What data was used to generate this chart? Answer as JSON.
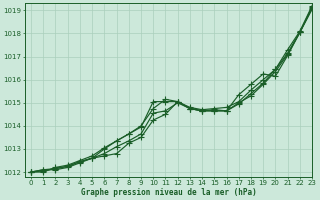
{
  "xlabel": "Graphe pression niveau de la mer (hPa)",
  "xlim": [
    -0.5,
    23
  ],
  "ylim": [
    1011.8,
    1019.3
  ],
  "yticks": [
    1012,
    1013,
    1014,
    1015,
    1016,
    1017,
    1018,
    1019
  ],
  "xticks": [
    0,
    1,
    2,
    3,
    4,
    5,
    6,
    7,
    8,
    9,
    10,
    11,
    12,
    13,
    14,
    15,
    16,
    17,
    18,
    19,
    20,
    21,
    22,
    23
  ],
  "bg_color": "#cce8da",
  "grid_color": "#aacfbc",
  "line_color": "#1a5e28",
  "line1": [
    1012.0,
    1012.1,
    1012.15,
    1012.25,
    1012.45,
    1012.6,
    1012.8,
    1013.1,
    1013.35,
    1013.65,
    1014.55,
    1014.65,
    1015.0,
    1014.75,
    1014.65,
    1014.65,
    1014.65,
    1015.0,
    1015.3,
    1015.8,
    1016.35,
    1017.1,
    1018.05,
    1019.1
  ],
  "line2": [
    1012.0,
    1012.05,
    1012.15,
    1012.25,
    1012.45,
    1012.6,
    1012.7,
    1012.8,
    1013.25,
    1013.5,
    1014.25,
    1014.5,
    1015.05,
    1014.8,
    1014.7,
    1014.75,
    1014.8,
    1015.05,
    1015.55,
    1016.0,
    1016.45,
    1017.3,
    1018.1,
    1019.2
  ],
  "line3": [
    1012.0,
    1012.0,
    1012.2,
    1012.3,
    1012.5,
    1012.7,
    1013.05,
    1013.35,
    1013.65,
    1014.0,
    1014.75,
    1015.15,
    1015.05,
    1014.75,
    1014.65,
    1014.7,
    1014.65,
    1014.95,
    1015.4,
    1015.85,
    1016.45,
    1017.15,
    1018.05,
    1019.15
  ],
  "line4": [
    1012.0,
    1012.1,
    1012.1,
    1012.2,
    1012.4,
    1012.6,
    1013.0,
    1013.35,
    1013.65,
    1013.95,
    1015.05,
    1015.05,
    1015.05,
    1014.75,
    1014.65,
    1014.65,
    1014.65,
    1015.35,
    1015.8,
    1016.25,
    1016.15,
    1017.05,
    1018.05,
    1019.05
  ]
}
